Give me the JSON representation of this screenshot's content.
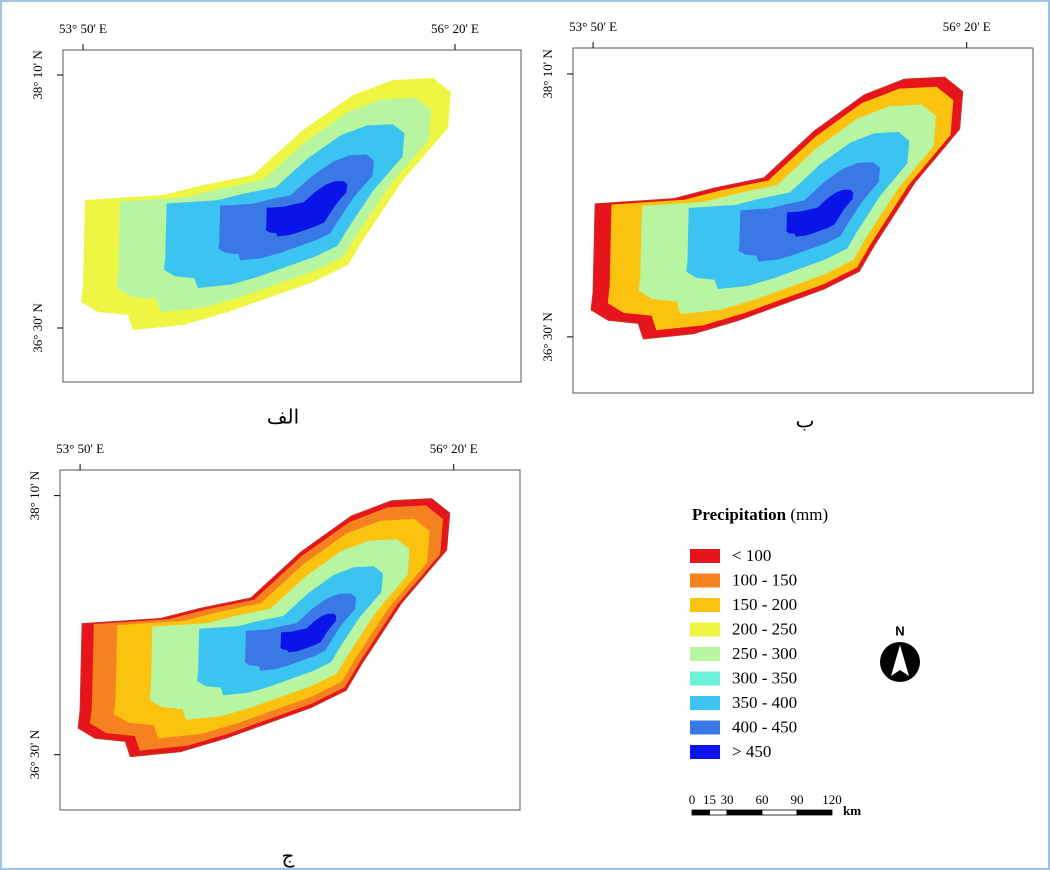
{
  "panels": [
    {
      "label": "الف",
      "x_labels": [
        "53° 50' E",
        "56° 20' E"
      ],
      "y_labels": [
        "38° 10' N",
        "36° 30' N"
      ]
    },
    {
      "label": "ب",
      "x_labels": [
        "53° 50' E",
        "56° 20' E"
      ],
      "y_labels": [
        "38° 10' N",
        "36° 30' N"
      ]
    },
    {
      "label": "ج",
      "x_labels": [
        "53° 50' E",
        "56° 20' E"
      ],
      "y_labels": [
        "38° 10' N",
        "36° 30' N"
      ]
    }
  ],
  "legend": {
    "title": "Precipitation",
    "unit": "(mm)",
    "items": [
      {
        "label": "< 100",
        "color": "#e8141c"
      },
      {
        "label": "100 - 150",
        "color": "#f5821f"
      },
      {
        "label": "150 - 200",
        "color": "#fbc210"
      },
      {
        "label": "200 - 250",
        "color": "#eef542"
      },
      {
        "label": "250 - 300",
        "color": "#b7f5a0"
      },
      {
        "label": "300 - 350",
        "color": "#6cf0d8"
      },
      {
        "label": "350 - 400",
        "color": "#3bc3f2"
      },
      {
        "label": "400 - 450",
        "color": "#3a78e6"
      },
      {
        "label": "> 450",
        "color": "#0a14e8"
      }
    ]
  },
  "north": "N",
  "scale": {
    "ticks": [
      0,
      15,
      30,
      60,
      90,
      120
    ],
    "unit": "km"
  }
}
